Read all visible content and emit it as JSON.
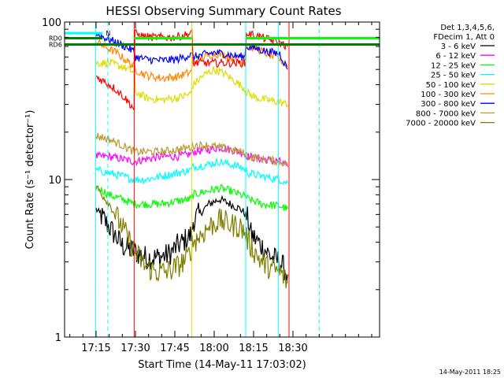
{
  "chart_data": {
    "type": "line",
    "title": "HESSI Observing Summary Count Rates",
    "xlabel": "Start Time (14-May-11 17:03:02)",
    "ylabel": "Count Rate (s⁻¹ detector⁻¹)",
    "yscale": "log",
    "ylim": [
      1,
      100
    ],
    "xlim_min": [
      3,
      123
    ],
    "x_unit": "minutes after 17:00",
    "x_ticks": [
      {
        "value": 15,
        "label": "17:15"
      },
      {
        "value": 30,
        "label": "17:30"
      },
      {
        "value": 45,
        "label": "17:45"
      },
      {
        "value": 60,
        "label": "18:00"
      },
      {
        "value": 75,
        "label": "18:15"
      },
      {
        "value": 90,
        "label": "18:30"
      }
    ],
    "y_ticks": [
      {
        "value": 1,
        "label": "1"
      },
      {
        "value": 10,
        "label": "10"
      },
      {
        "value": 100,
        "label": "100"
      }
    ],
    "legend": {
      "header": [
        "Det 1,3,4,5,6,",
        "FDecim 1, Att 0"
      ],
      "position": "right"
    },
    "series": [
      {
        "name": "3 - 6 keV",
        "color": "#000000",
        "x": [
          15,
          20,
          25,
          29.5,
          34,
          38,
          42,
          44,
          46,
          48,
          50,
          51.5,
          52,
          58,
          62,
          66,
          70,
          72,
          73,
          74,
          78,
          82,
          85,
          88
        ],
        "y": [
          6.5,
          5,
          3.8,
          3.5,
          3.2,
          3.2,
          3.3,
          3.5,
          3.8,
          4,
          4.3,
          4.5,
          5.5,
          7,
          7.5,
          7,
          6.5,
          6,
          5.5,
          4.5,
          3.8,
          3.2,
          3,
          2.5
        ]
      },
      {
        "name": "6 - 12 keV",
        "color": "#ff00ff",
        "x": [
          15,
          20,
          25,
          29.5,
          34,
          40,
          46,
          51,
          52,
          58,
          62,
          66,
          70,
          72,
          73,
          78,
          85,
          88
        ],
        "y": [
          14,
          14,
          13.5,
          13,
          13.5,
          14,
          14,
          14.5,
          15,
          15.5,
          16,
          15.5,
          15,
          14.5,
          14,
          13.5,
          13,
          12
        ]
      },
      {
        "name": "12 - 25 keV",
        "color": "#00ff00",
        "x": [
          15,
          20,
          25,
          29.5,
          34,
          40,
          46,
          51,
          52,
          58,
          62,
          66,
          70,
          72,
          73,
          78,
          85,
          88
        ],
        "y": [
          9,
          8,
          7.5,
          7,
          7,
          7,
          7.3,
          7.5,
          8,
          8.5,
          8.8,
          8.5,
          8,
          7.8,
          7.5,
          7,
          6.8,
          6.5
        ]
      },
      {
        "name": "25 - 50 keV",
        "color": "#00ffff",
        "x": [
          15,
          20,
          25,
          29.5,
          34,
          40,
          46,
          51,
          52,
          58,
          62,
          66,
          70,
          72,
          73,
          78,
          85,
          88
        ],
        "y": [
          11.5,
          11,
          10.5,
          10,
          10,
          10.5,
          11,
          11.5,
          12,
          12.5,
          13,
          12.5,
          12,
          11.5,
          11,
          10.5,
          10,
          9.5
        ]
      },
      {
        "name": "50 - 100 keV",
        "color": "#dddd00",
        "x": [
          15,
          20,
          25,
          29.5,
          30,
          34,
          40,
          46,
          51,
          52,
          56,
          60,
          64,
          68,
          71.5,
          72,
          76,
          80,
          85,
          88
        ],
        "y": [
          55,
          55,
          52,
          48,
          36,
          33,
          32,
          33,
          35,
          40,
          46,
          50,
          47,
          42,
          38,
          36,
          33,
          32,
          31,
          30
        ]
      },
      {
        "name": "100 - 300 keV",
        "color": "#ff8800",
        "x": [
          15,
          18,
          22,
          26,
          29.5,
          30,
          34,
          40,
          46,
          51,
          52,
          56,
          60,
          64,
          68,
          71.5,
          72,
          76,
          80,
          85,
          88
        ],
        "y": [
          75,
          70,
          65,
          58,
          52,
          50,
          46,
          44,
          45,
          48,
          55,
          60,
          63,
          62,
          58,
          55,
          70,
          68,
          63,
          58,
          52
        ]
      },
      {
        "name": "300 - 800 keV",
        "color": "#0000ff",
        "x": [
          15,
          18,
          22,
          26,
          29.5,
          30,
          34,
          40,
          46,
          51,
          52,
          56,
          60,
          64,
          68,
          71.5,
          72,
          76,
          80,
          85,
          88
        ],
        "y": [
          85,
          80,
          75,
          70,
          65,
          60,
          58,
          57,
          58,
          62,
          60,
          62,
          64,
          63,
          61,
          60,
          70,
          68,
          65,
          63,
          50
        ]
      },
      {
        "name": "800 - 7000 keV",
        "color": "#bb9933",
        "x": [
          15,
          20,
          25,
          29.5,
          34,
          40,
          46,
          51,
          52,
          58,
          62,
          66,
          70,
          72,
          73,
          78,
          85,
          88
        ],
        "y": [
          19,
          18,
          16.5,
          15,
          15,
          15,
          15.5,
          16,
          16.5,
          16.5,
          16,
          15.5,
          15,
          14.5,
          14,
          13.5,
          13,
          12.5
        ]
      },
      {
        "name": "7000 - 20000 keV",
        "color": "#808000",
        "x": [
          15,
          20,
          25,
          29.5,
          34,
          38,
          42,
          46,
          50,
          52,
          58,
          62,
          66,
          70,
          72,
          73,
          78,
          82,
          85,
          88
        ],
        "y": [
          9,
          7,
          5,
          3.5,
          2.8,
          2.6,
          2.6,
          2.8,
          3.2,
          4,
          5,
          5.5,
          5.2,
          5,
          4.5,
          4,
          3,
          2.7,
          2.6,
          2.2
        ]
      },
      {
        "name": "",
        "color": "#ff0000",
        "x": [
          15,
          18,
          22,
          26,
          29.5,
          29.8,
          32,
          36,
          40,
          44,
          48,
          51.5,
          52,
          58,
          64,
          70,
          72,
          72.2,
          76,
          80,
          84,
          88
        ],
        "y": [
          45,
          42,
          38,
          33,
          28,
          85,
          82,
          80,
          80,
          80,
          82,
          85,
          55,
          55,
          55,
          55,
          55,
          85,
          82,
          78,
          75,
          70
        ]
      }
    ],
    "annotations": {
      "flags": [
        {
          "label": "N",
          "color": "#00ffff",
          "x": [
            3,
            17.5
          ],
          "y": 85
        },
        {
          "label": "RD0",
          "color": "#008000",
          "x": [
            3,
            17.5
          ],
          "y": 79
        },
        {
          "label": "RD6",
          "color": "#008000",
          "x": [
            3,
            123
          ],
          "y": 72
        }
      ],
      "attenuator_bands": [
        {
          "label": "",
          "color": "#00ff00",
          "x": [
            29.5,
            51.5
          ],
          "y": 79
        },
        {
          "label": "",
          "color": "#00ff00",
          "x": [
            72,
            123
          ],
          "y": 79
        }
      ],
      "solid_vlines": [
        {
          "x": 14.8,
          "color": "#00ffff"
        },
        {
          "x": 29.5,
          "color": "#ff0000"
        },
        {
          "x": 51.5,
          "color": "#dddd00"
        },
        {
          "x": 72,
          "color": "#00ffff"
        },
        {
          "x": 84.5,
          "color": "#00ffff"
        },
        {
          "x": 88.5,
          "color": "#ff0000"
        }
      ],
      "dashed_vlines": [
        {
          "x": 19.5,
          "color": "#00ffff"
        },
        {
          "x": 100,
          "color": "#00ffff"
        }
      ]
    }
  },
  "footer": {
    "timestamp": "14-May-2011 18:25"
  }
}
